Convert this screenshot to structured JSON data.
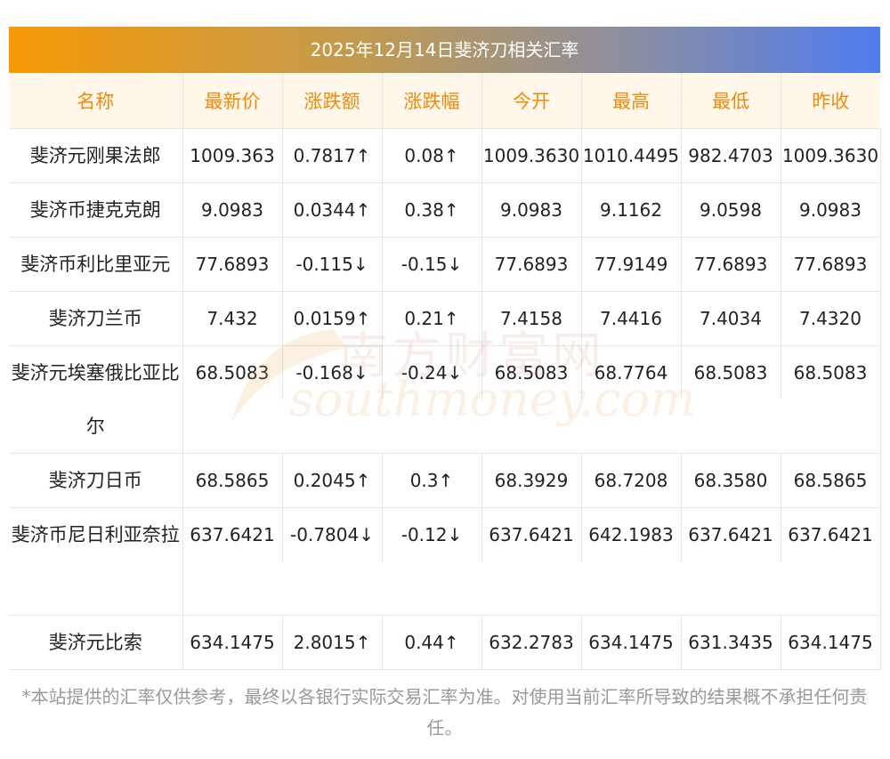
{
  "title": "2025年12月14日斐济刀相关汇率",
  "headers": [
    "名称",
    "最新价",
    "涨跌额",
    "涨跌幅",
    "今开",
    "最高",
    "最低",
    "昨收"
  ],
  "rows": [
    {
      "name": "斐济元刚果法郎",
      "latest": "1009.363",
      "change": "0.7817↑",
      "pct": "0.08↑",
      "open": "1009.3630",
      "high": "1010.4495",
      "low": "982.4703",
      "prev": "1009.3630",
      "dir": "up"
    },
    {
      "name": "斐济币捷克克朗",
      "latest": "9.0983",
      "change": "0.0344↑",
      "pct": "0.38↑",
      "open": "9.0983",
      "high": "9.1162",
      "low": "9.0598",
      "prev": "9.0983",
      "dir": "up"
    },
    {
      "name": "斐济币利比里亚元",
      "latest": "77.6893",
      "change": "-0.115↓",
      "pct": "-0.15↓",
      "open": "77.6893",
      "high": "77.9149",
      "low": "77.6893",
      "prev": "77.6893",
      "dir": "down"
    },
    {
      "name": "斐济刀兰币",
      "latest": "7.432",
      "change": "0.0159↑",
      "pct": "0.21↑",
      "open": "7.4158",
      "high": "7.4416",
      "low": "7.4034",
      "prev": "7.4320",
      "dir": "up"
    },
    {
      "name": "斐济元埃塞俄比亚比尔",
      "latest": "68.5083",
      "change": "-0.168↓",
      "pct": "-0.24↓",
      "open": "68.5083",
      "high": "68.7764",
      "low": "68.5083",
      "prev": "68.5083",
      "dir": "down"
    },
    {
      "name": "斐济刀日币",
      "latest": "68.5865",
      "change": "0.2045↑",
      "pct": "0.3↑",
      "open": "68.3929",
      "high": "68.7208",
      "low": "68.3580",
      "prev": "68.5865",
      "dir": "up"
    },
    {
      "name": "斐济币尼日利亚奈拉",
      "latest": "637.6421",
      "change": "-0.7804↓",
      "pct": "-0.12↓",
      "open": "637.6421",
      "high": "642.1983",
      "low": "637.6421",
      "prev": "637.6421",
      "dir": "down"
    },
    {
      "name": "斐济元比索",
      "latest": "634.1475",
      "change": "2.8015↑",
      "pct": "0.44↑",
      "open": "632.2783",
      "high": "634.1475",
      "low": "631.3435",
      "prev": "634.1475",
      "dir": "up"
    }
  ],
  "watermark": {
    "cn": "南方财富网",
    "en": "southmoney.com"
  },
  "disclaimer": "*本站提供的汇率仅供参考，最终以各银行实际交易汇率为准。对使用当前汇率所导致的结果概不承担任何责任。",
  "colors": {
    "up": "#e0161a",
    "down": "#1e8a1e",
    "header_text": "#f08a0b",
    "header_bg": "#fef7ea"
  }
}
